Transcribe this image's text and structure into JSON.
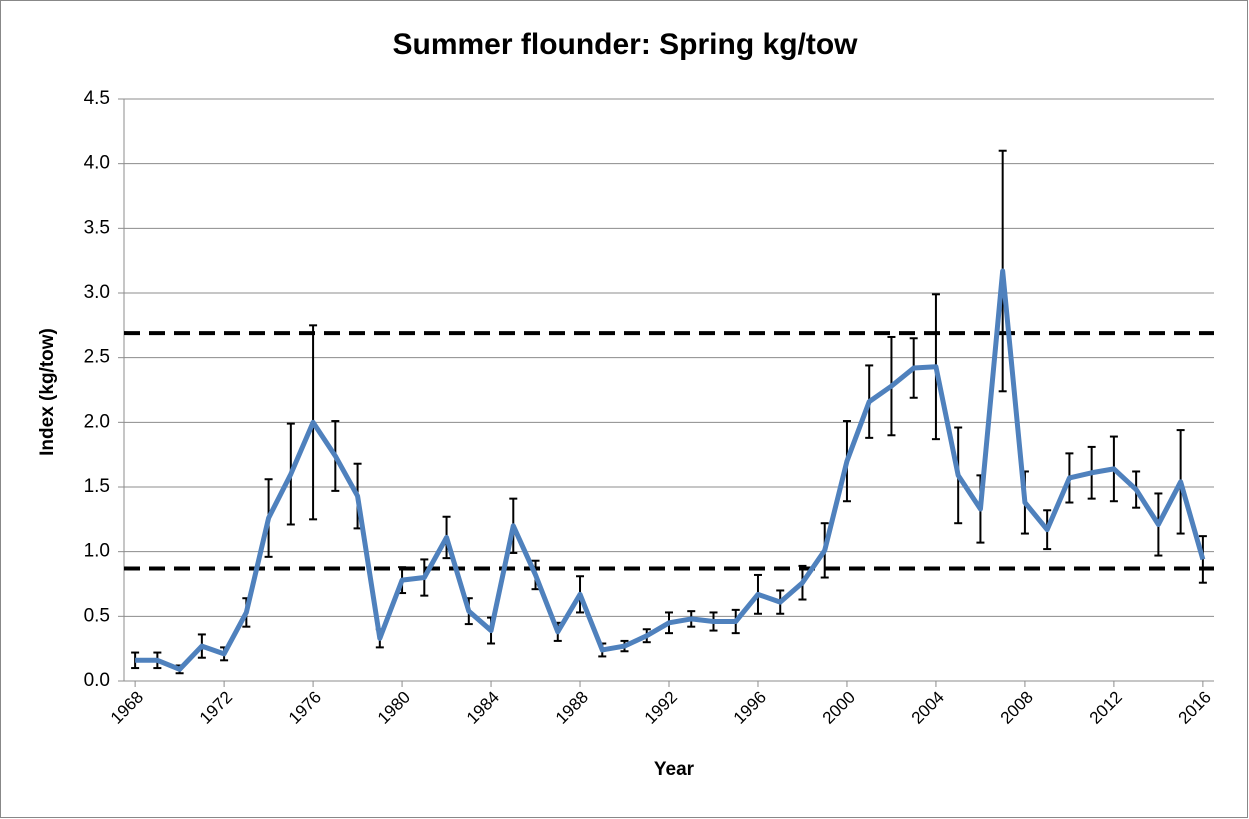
{
  "chart_data": {
    "type": "line",
    "title": "Summer flounder: Spring kg/tow",
    "x_label": "Year",
    "y_label": "Index (kg/tow)",
    "x": [
      1968,
      1969,
      1970,
      1971,
      1972,
      1973,
      1974,
      1975,
      1976,
      1977,
      1978,
      1979,
      1980,
      1981,
      1982,
      1983,
      1984,
      1985,
      1986,
      1987,
      1988,
      1989,
      1990,
      1991,
      1992,
      1993,
      1994,
      1995,
      1996,
      1997,
      1998,
      1999,
      2000,
      2001,
      2002,
      2003,
      2004,
      2005,
      2006,
      2007,
      2008,
      2009,
      2010,
      2011,
      2012,
      2013,
      2014,
      2015,
      2016
    ],
    "values": [
      0.16,
      0.16,
      0.09,
      0.27,
      0.21,
      0.53,
      1.26,
      1.6,
      2.0,
      1.74,
      1.43,
      0.33,
      0.78,
      0.8,
      1.11,
      0.54,
      0.39,
      1.2,
      0.82,
      0.38,
      0.67,
      0.24,
      0.27,
      0.35,
      0.45,
      0.48,
      0.46,
      0.46,
      0.67,
      0.61,
      0.76,
      1.01,
      1.7,
      2.16,
      2.28,
      2.42,
      2.43,
      1.59,
      1.33,
      3.17,
      1.38,
      1.17,
      1.57,
      1.61,
      1.64,
      1.48,
      1.21,
      1.54,
      0.94
    ],
    "errors": [
      0.06,
      0.06,
      0.03,
      0.09,
      0.05,
      0.11,
      0.3,
      0.39,
      0.75,
      0.27,
      0.25,
      0.07,
      0.1,
      0.14,
      0.16,
      0.1,
      0.1,
      0.21,
      0.11,
      0.07,
      0.14,
      0.05,
      0.04,
      0.05,
      0.08,
      0.06,
      0.07,
      0.09,
      0.15,
      0.09,
      0.13,
      0.21,
      0.31,
      0.28,
      0.38,
      0.23,
      0.56,
      0.37,
      0.26,
      0.93,
      0.24,
      0.15,
      0.19,
      0.2,
      0.25,
      0.14,
      0.24,
      0.4,
      0.18
    ],
    "color": "#4f81bd",
    "reference_lines": [
      2.69,
      0.87
    ],
    "xlim": [
      1967.5,
      2016.5
    ],
    "xticks": [
      1968,
      1972,
      1976,
      1980,
      1984,
      1988,
      1992,
      1996,
      2000,
      2004,
      2008,
      2012,
      2016
    ],
    "ylim": [
      0,
      4.5
    ],
    "yticks": [
      {
        "value": 0,
        "label": "0.0"
      },
      0.5,
      {
        "value": 1,
        "label": "1.0"
      },
      1.5,
      {
        "value": 2,
        "label": "2.0"
      },
      2.5,
      {
        "value": 3,
        "label": "3.0"
      },
      3.5,
      {
        "value": 4,
        "label": "4.0"
      },
      4.5
    ],
    "grid": true
  }
}
